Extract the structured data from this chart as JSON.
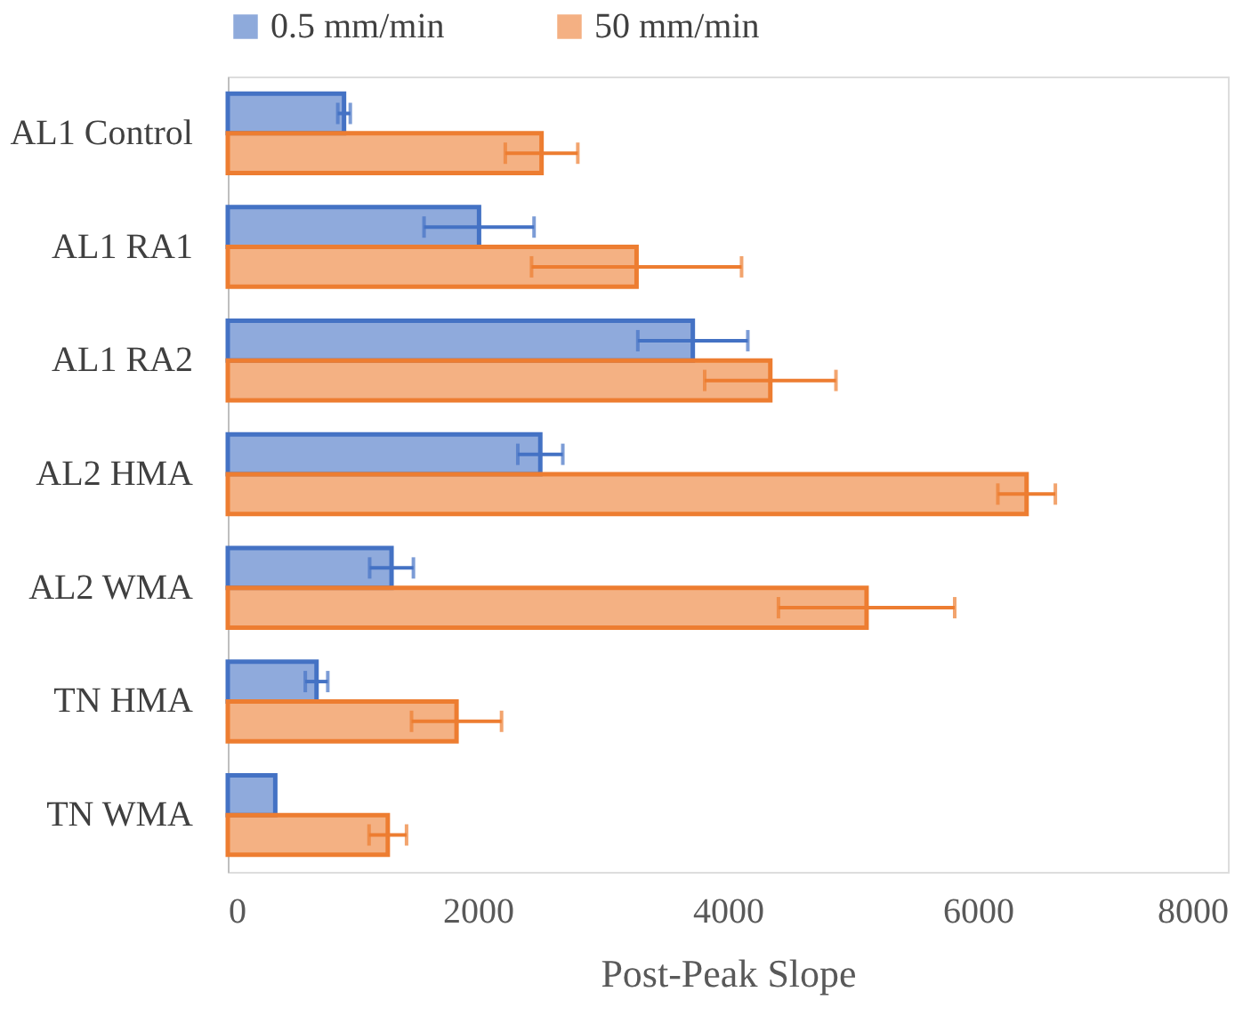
{
  "chart_data": {
    "type": "bar",
    "orientation": "horizontal",
    "xlabel": "Post-Peak Slope",
    "categories": [
      "AL1 Control",
      "AL1 RA1",
      "AL1 RA2",
      "AL2 HMA",
      "AL2 WMA",
      "TN HMA",
      "TN WMA"
    ],
    "series": [
      {
        "name": "0.5 mm/min",
        "color": "#4472c4",
        "values": [
          930,
          2010,
          3720,
          2500,
          1310,
          710,
          380
        ],
        "errors": [
          50,
          440,
          440,
          180,
          175,
          90,
          null
        ]
      },
      {
        "name": "50 mm/min",
        "color": "#ed7d31",
        "values": [
          2510,
          3270,
          4340,
          6390,
          5110,
          1830,
          1280
        ],
        "errors": [
          290,
          840,
          525,
          230,
          705,
          360,
          150
        ]
      }
    ],
    "xlim": [
      0,
      8000
    ],
    "xticks": [
      0,
      2000,
      4000,
      6000,
      8000
    ],
    "grid": false,
    "legend": "top"
  }
}
